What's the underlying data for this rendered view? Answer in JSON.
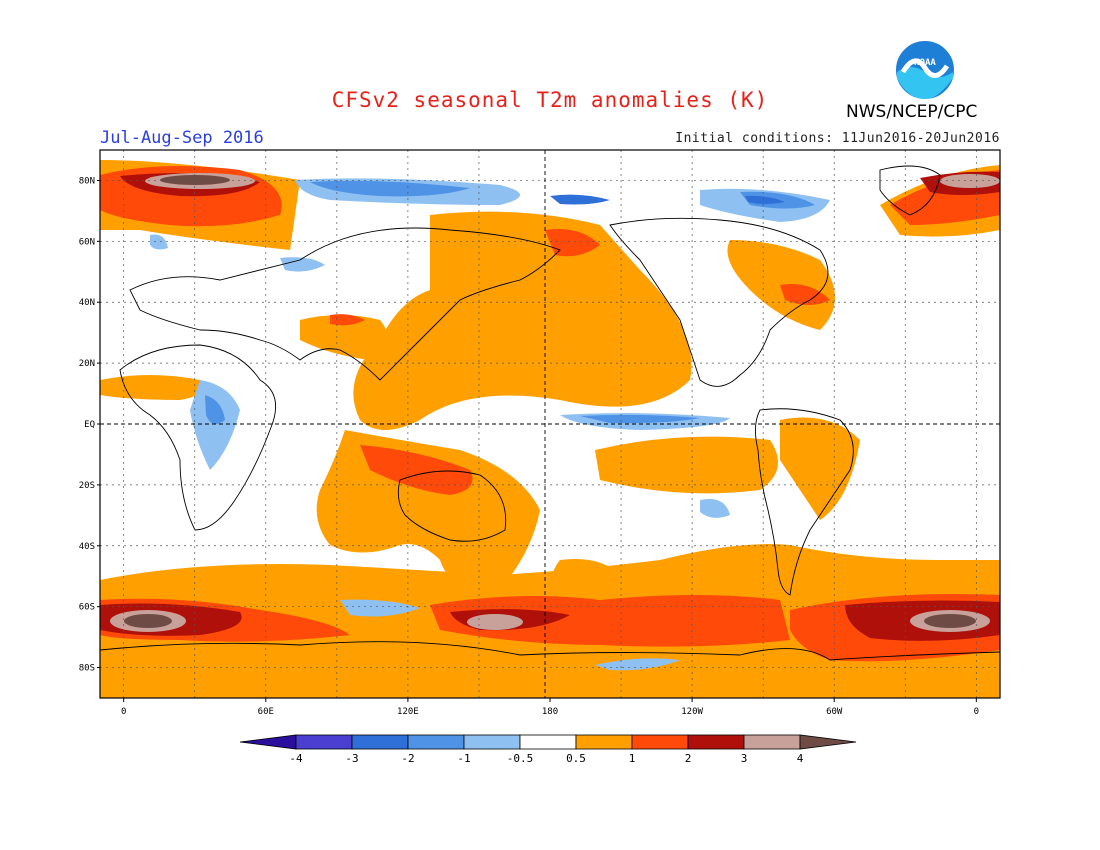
{
  "header": {
    "title": "CFSv2 seasonal T2m anomalies (K)",
    "period": "Jul-Aug-Sep 2016",
    "initial_conditions": "Initial conditions: 11Jun2016-20Jun2016",
    "agency": "NWS/NCEP/CPC",
    "logo_text": "NOAA"
  },
  "map": {
    "projection": "cylindrical equidistant",
    "lat_labels": [
      "80N",
      "60N",
      "40N",
      "20N",
      "EQ",
      "20S",
      "40S",
      "60S",
      "80S"
    ],
    "lon_labels": [
      "0",
      "60E",
      "120E",
      "180",
      "120W",
      "60W",
      "0"
    ],
    "grid": "dotted"
  },
  "colorbar": {
    "tick_labels": [
      "-4",
      "-3",
      "-2",
      "-1",
      "-0.5",
      "0.5",
      "1",
      "2",
      "3",
      "4"
    ],
    "colors": [
      "#2a0f9c",
      "#4a3fd0",
      "#2f6fd8",
      "#4f93e6",
      "#8ec0f2",
      "#ffffff",
      "#ffa000",
      "#ff4a0a",
      "#b0100a",
      "#c8a29a",
      "#6e4b44"
    ]
  },
  "chart_data": {
    "type": "heatmap",
    "title": "CFSv2 seasonal T2m anomalies (K)",
    "subtitle": "Jul-Aug-Sep 2016",
    "units": "K",
    "levels": [
      -4,
      -3,
      -2,
      -1,
      -0.5,
      0.5,
      1,
      2,
      3,
      4
    ],
    "x_range": [
      -10,
      370
    ],
    "y_range": [
      -90,
      90
    ]
  }
}
